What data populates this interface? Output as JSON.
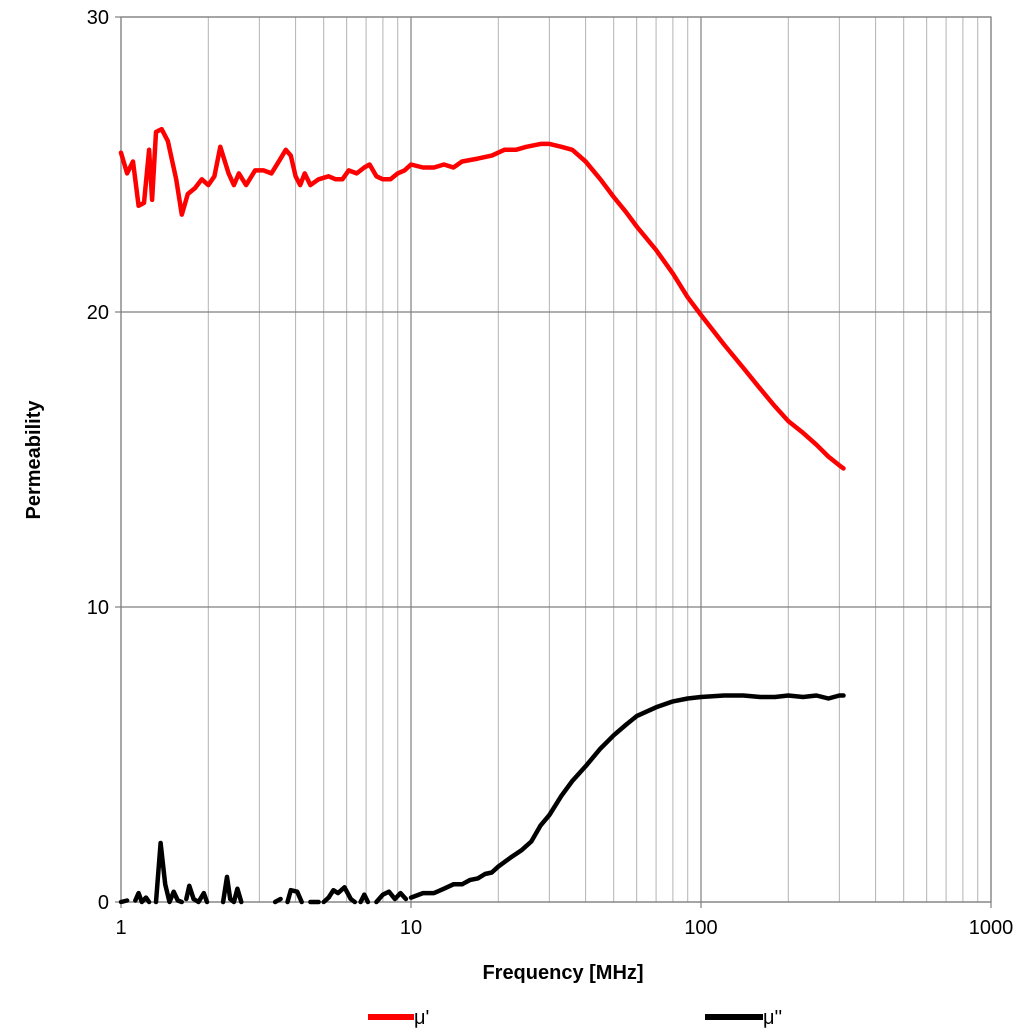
{
  "chart_data": {
    "type": "line",
    "xlabel": "Frequency [MHz]",
    "ylabel": "Permeability",
    "x_scale": "log",
    "xlim": [
      1,
      1000
    ],
    "ylim": [
      0,
      30
    ],
    "x_ticks": [
      1,
      10,
      100,
      1000
    ],
    "x_tick_labels": [
      "1",
      "10",
      "100",
      "1000"
    ],
    "y_ticks": [
      0,
      10,
      20,
      30
    ],
    "y_tick_labels": [
      "0",
      "10",
      "20",
      "30"
    ],
    "grid": true,
    "legend_position": "bottom",
    "series": [
      {
        "name": "μ'",
        "color": "#ff0000",
        "points": [
          [
            1.0,
            25.4
          ],
          [
            1.05,
            24.7
          ],
          [
            1.1,
            25.1
          ],
          [
            1.15,
            23.6
          ],
          [
            1.2,
            23.7
          ],
          [
            1.25,
            25.5
          ],
          [
            1.28,
            23.8
          ],
          [
            1.32,
            26.1
          ],
          [
            1.38,
            26.2
          ],
          [
            1.45,
            25.8
          ],
          [
            1.55,
            24.5
          ],
          [
            1.62,
            23.3
          ],
          [
            1.7,
            24.0
          ],
          [
            1.8,
            24.2
          ],
          [
            1.9,
            24.5
          ],
          [
            2.0,
            24.3
          ],
          [
            2.1,
            24.6
          ],
          [
            2.2,
            25.6
          ],
          [
            2.35,
            24.7
          ],
          [
            2.45,
            24.3
          ],
          [
            2.55,
            24.7
          ],
          [
            2.7,
            24.3
          ],
          [
            2.9,
            24.8
          ],
          [
            3.1,
            24.8
          ],
          [
            3.3,
            24.7
          ],
          [
            3.5,
            25.1
          ],
          [
            3.7,
            25.5
          ],
          [
            3.85,
            25.3
          ],
          [
            4.0,
            24.6
          ],
          [
            4.15,
            24.3
          ],
          [
            4.3,
            24.7
          ],
          [
            4.5,
            24.3
          ],
          [
            4.8,
            24.5
          ],
          [
            5.2,
            24.6
          ],
          [
            5.5,
            24.5
          ],
          [
            5.8,
            24.5
          ],
          [
            6.1,
            24.8
          ],
          [
            6.5,
            24.7
          ],
          [
            6.9,
            24.9
          ],
          [
            7.2,
            25.0
          ],
          [
            7.6,
            24.6
          ],
          [
            8.0,
            24.5
          ],
          [
            8.5,
            24.5
          ],
          [
            9.0,
            24.7
          ],
          [
            9.5,
            24.8
          ],
          [
            10.0,
            25.0
          ],
          [
            11.0,
            24.9
          ],
          [
            12.0,
            24.9
          ],
          [
            13.0,
            25.0
          ],
          [
            14.0,
            24.9
          ],
          [
            15.0,
            25.1
          ],
          [
            17.0,
            25.2
          ],
          [
            19.0,
            25.3
          ],
          [
            21.0,
            25.5
          ],
          [
            23.0,
            25.5
          ],
          [
            25.0,
            25.6
          ],
          [
            28.0,
            25.7
          ],
          [
            30.0,
            25.7
          ],
          [
            33.0,
            25.6
          ],
          [
            36.0,
            25.5
          ],
          [
            40.0,
            25.1
          ],
          [
            45.0,
            24.5
          ],
          [
            50.0,
            23.9
          ],
          [
            55.0,
            23.4
          ],
          [
            60.0,
            22.9
          ],
          [
            70.0,
            22.1
          ],
          [
            80.0,
            21.3
          ],
          [
            90.0,
            20.5
          ],
          [
            100.0,
            19.9
          ],
          [
            120.0,
            18.9
          ],
          [
            140.0,
            18.1
          ],
          [
            160.0,
            17.4
          ],
          [
            180.0,
            16.8
          ],
          [
            200.0,
            16.3
          ],
          [
            225.0,
            15.9
          ],
          [
            250.0,
            15.5
          ],
          [
            275.0,
            15.1
          ],
          [
            300.0,
            14.8
          ],
          [
            310.0,
            14.7
          ]
        ]
      },
      {
        "name": "μ''",
        "color": "#000000",
        "segments": [
          [
            [
              1.0,
              0.0
            ],
            [
              1.05,
              0.05
            ]
          ],
          [
            [
              1.12,
              0.05
            ],
            [
              1.15,
              0.3
            ],
            [
              1.18,
              0.0
            ],
            [
              1.22,
              0.15
            ],
            [
              1.25,
              0.0
            ]
          ],
          [
            [
              1.32,
              0.0
            ],
            [
              1.37,
              2.0
            ],
            [
              1.42,
              0.6
            ],
            [
              1.47,
              0.0
            ],
            [
              1.52,
              0.35
            ],
            [
              1.57,
              0.05
            ],
            [
              1.62,
              0.0
            ]
          ],
          [
            [
              1.68,
              0.1
            ],
            [
              1.72,
              0.55
            ],
            [
              1.78,
              0.1
            ],
            [
              1.85,
              0.0
            ],
            [
              1.93,
              0.3
            ],
            [
              1.98,
              0.0
            ]
          ],
          [
            [
              2.25,
              0.0
            ],
            [
              2.32,
              0.85
            ],
            [
              2.38,
              0.1
            ],
            [
              2.45,
              0.0
            ],
            [
              2.52,
              0.45
            ],
            [
              2.6,
              0.0
            ]
          ],
          [
            [
              3.4,
              0.0
            ],
            [
              3.55,
              0.1
            ]
          ],
          [
            [
              3.75,
              0.0
            ],
            [
              3.85,
              0.4
            ],
            [
              4.05,
              0.35
            ],
            [
              4.2,
              0.0
            ]
          ],
          [
            [
              4.5,
              0.0
            ],
            [
              4.8,
              0.0
            ]
          ],
          [
            [
              5.0,
              0.0
            ],
            [
              5.2,
              0.15
            ],
            [
              5.4,
              0.4
            ],
            [
              5.6,
              0.3
            ],
            [
              5.9,
              0.5
            ],
            [
              6.2,
              0.1
            ],
            [
              6.4,
              0.0
            ]
          ],
          [
            [
              6.7,
              0.0
            ],
            [
              6.9,
              0.25
            ],
            [
              7.1,
              0.0
            ]
          ],
          [
            [
              7.6,
              0.0
            ],
            [
              8.0,
              0.25
            ],
            [
              8.4,
              0.35
            ],
            [
              8.8,
              0.1
            ],
            [
              9.2,
              0.3
            ],
            [
              9.6,
              0.1
            ]
          ],
          [
            [
              10.0,
              0.15
            ],
            [
              11.0,
              0.3
            ],
            [
              12.0,
              0.3
            ],
            [
              13.0,
              0.45
            ],
            [
              14.0,
              0.6
            ],
            [
              15.0,
              0.6
            ],
            [
              16.0,
              0.75
            ],
            [
              17.0,
              0.8
            ],
            [
              18.0,
              0.95
            ],
            [
              19.0,
              1.0
            ],
            [
              20.0,
              1.2
            ],
            [
              22.0,
              1.5
            ],
            [
              24.0,
              1.75
            ],
            [
              26.0,
              2.05
            ],
            [
              28.0,
              2.6
            ],
            [
              30.0,
              2.95
            ],
            [
              33.0,
              3.6
            ],
            [
              36.0,
              4.1
            ],
            [
              40.0,
              4.6
            ],
            [
              45.0,
              5.2
            ],
            [
              50.0,
              5.65
            ],
            [
              55.0,
              6.0
            ],
            [
              60.0,
              6.3
            ],
            [
              70.0,
              6.6
            ],
            [
              80.0,
              6.8
            ],
            [
              90.0,
              6.9
            ],
            [
              100.0,
              6.95
            ],
            [
              120.0,
              7.0
            ],
            [
              140.0,
              7.0
            ],
            [
              160.0,
              6.95
            ],
            [
              180.0,
              6.95
            ],
            [
              200.0,
              7.0
            ],
            [
              225.0,
              6.95
            ],
            [
              250.0,
              7.0
            ],
            [
              275.0,
              6.9
            ],
            [
              300.0,
              7.0
            ],
            [
              310.0,
              7.0
            ]
          ]
        ]
      }
    ]
  }
}
